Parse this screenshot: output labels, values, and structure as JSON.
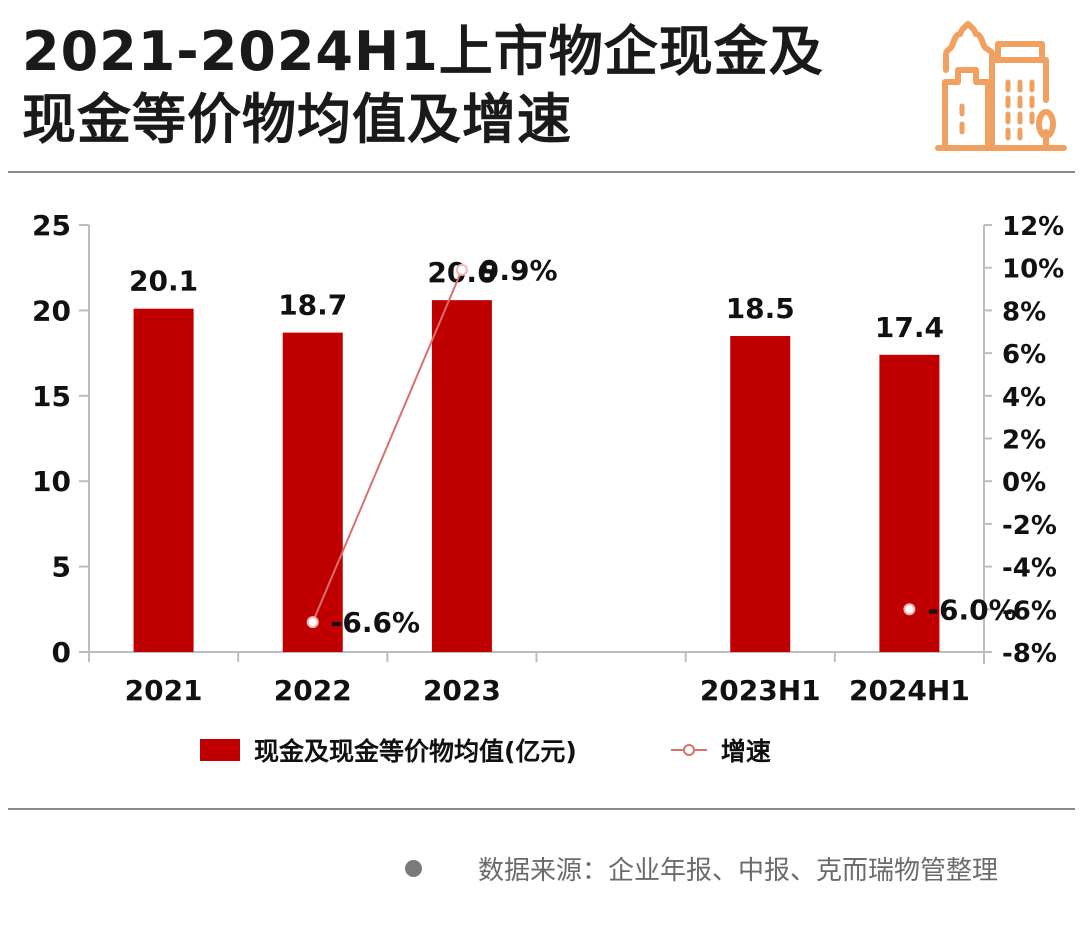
{
  "header": {
    "title_line1": "2021-2024H1上市物企现金及",
    "title_line2": "现金等价物均值及增速",
    "logo_icon": "city-buildings-icon",
    "accent_color": "#F0A060"
  },
  "chart_data": {
    "type": "bar",
    "title": "2021-2024H1上市物企现金及现金等价物均值及增速",
    "categories": [
      "2021",
      "2022",
      "2023",
      "",
      "2023H1",
      "2024H1"
    ],
    "series": [
      {
        "name": "现金及现金等价物均值(亿元)",
        "type": "bar",
        "axis": "left",
        "color": "#C00000",
        "values": [
          20.1,
          18.7,
          20.6,
          null,
          18.5,
          17.4
        ],
        "labels": [
          "20.1",
          "18.7",
          "20.6",
          "",
          "18.5",
          "17.4"
        ]
      },
      {
        "name": "增速",
        "type": "line",
        "axis": "right",
        "color": "#D9706E",
        "values": [
          null,
          -6.6,
          9.9,
          null,
          null,
          -6.0
        ],
        "labels": [
          "",
          "-6.6%",
          "9.9%",
          "",
          "",
          "-6.0%"
        ]
      }
    ],
    "y_left": {
      "min": 0,
      "max": 25,
      "ticks": [
        0,
        5,
        10,
        15,
        20,
        25
      ],
      "tick_labels": [
        "0",
        "5",
        "10",
        "15",
        "20",
        "25"
      ]
    },
    "y_right": {
      "min": -8,
      "max": 12,
      "ticks": [
        -8,
        -6,
        -4,
        -2,
        0,
        2,
        4,
        6,
        8,
        10,
        12
      ],
      "tick_labels": [
        "-8%",
        "-6%",
        "-4%",
        "-2%",
        "0%",
        "2%",
        "4%",
        "6%",
        "8%",
        "10%",
        "12%"
      ]
    },
    "xlabel": "",
    "ylabel": "",
    "grid": false,
    "legend_position": "bottom"
  },
  "legend": {
    "bar_label": "现金及现金等价物均值(亿元)",
    "line_label": "增速"
  },
  "footer": {
    "source": "数据来源：企业年报、中报、克而瑞物管整理"
  }
}
